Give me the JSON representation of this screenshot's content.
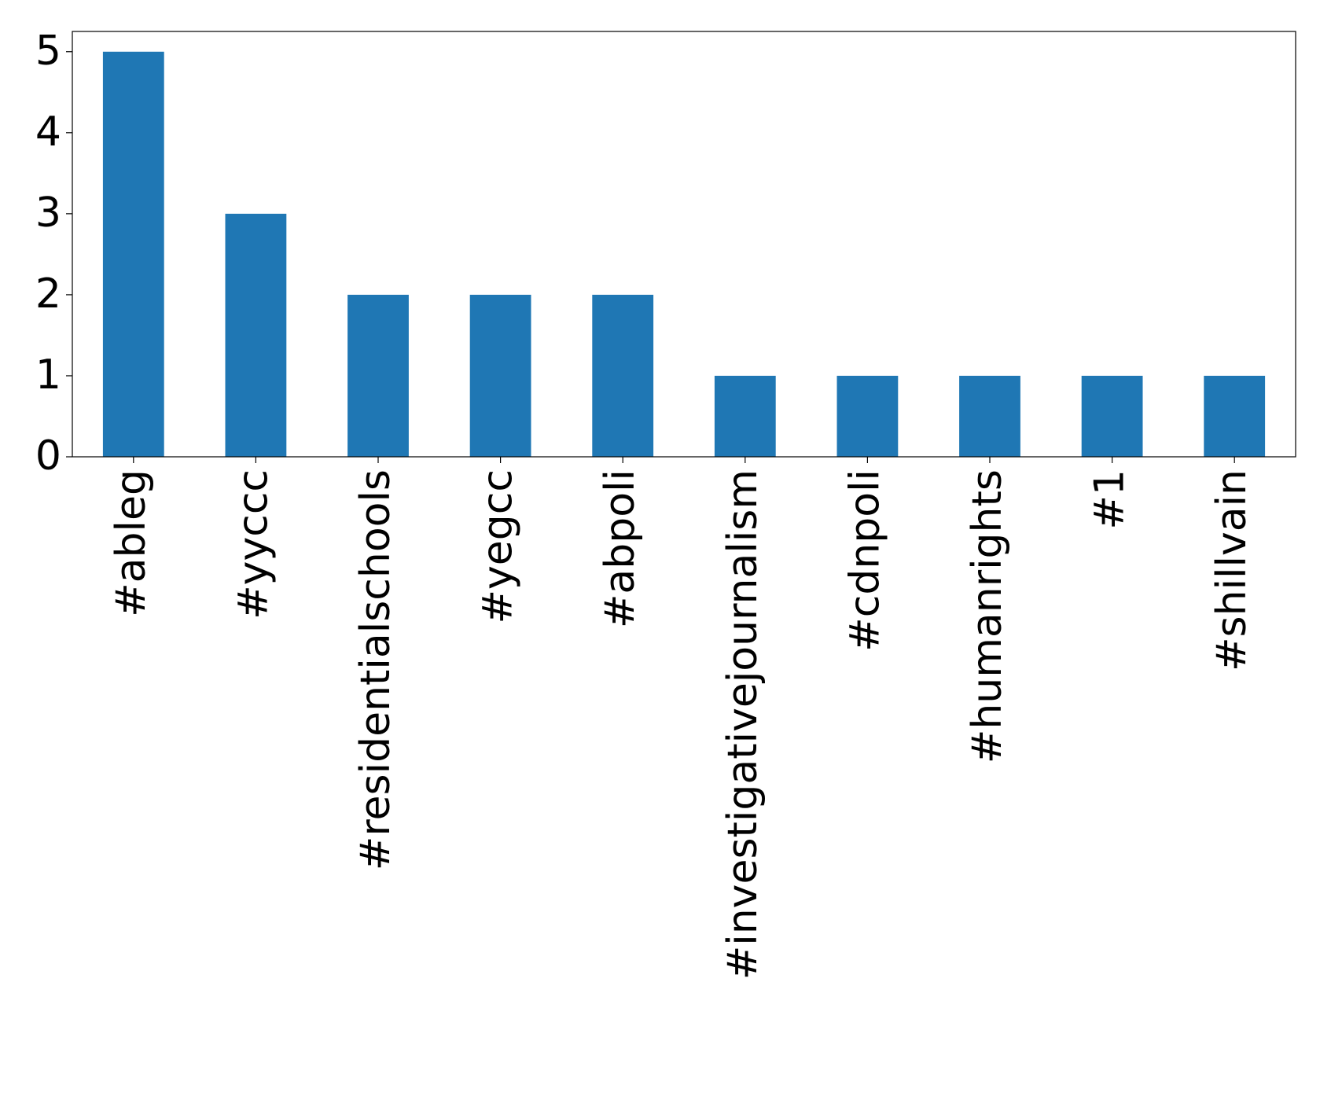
{
  "chart_data": {
    "type": "bar",
    "categories": [
      "#ableg",
      "#yyccc",
      "#residentialschools",
      "#yegcc",
      "#abpoli",
      "#investigativejournalism",
      "#cdnpoli",
      "#humanrights",
      "#1",
      "#shillvain"
    ],
    "values": [
      5,
      3,
      2,
      2,
      2,
      1,
      1,
      1,
      1,
      1
    ],
    "color": "#1f77b4",
    "ylim": [
      0,
      5.25
    ],
    "yticks": [
      0,
      1,
      2,
      3,
      4,
      5
    ],
    "grid": false
  }
}
